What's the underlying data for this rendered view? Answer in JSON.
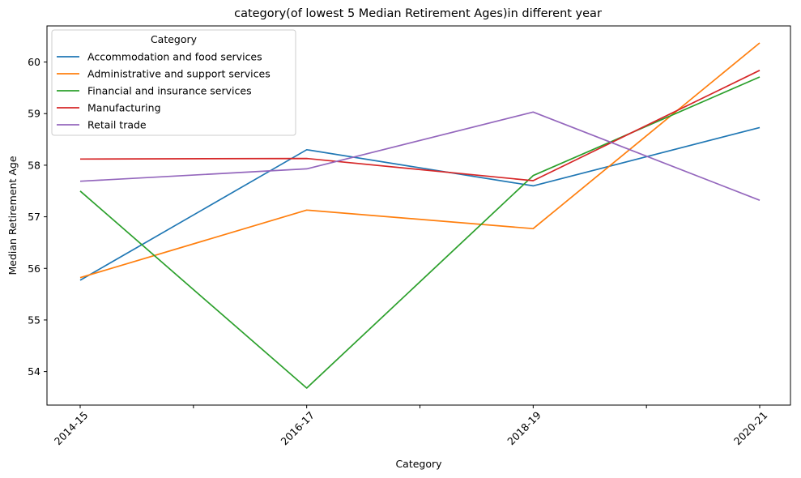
{
  "chart_data": {
    "type": "line",
    "title": "category(of lowest 5  Median Retirement Ages)in different  year",
    "xlabel": "Category",
    "ylabel": "Median Retirement Age",
    "categories": [
      "2014-15",
      "2016-17",
      "2018-19",
      "2020-21"
    ],
    "yticks": [
      54,
      55,
      56,
      57,
      58,
      59,
      60
    ],
    "ylim": [
      53.35,
      60.7
    ],
    "grid": false,
    "legend": {
      "title": "Category",
      "placement": "top-left"
    },
    "series": [
      {
        "name": "Accommodation and food services",
        "color": "#1f77b4",
        "values": [
          55.77,
          58.3,
          57.6,
          58.73
        ]
      },
      {
        "name": "Administrative and support services",
        "color": "#ff7f0e",
        "values": [
          55.82,
          57.13,
          56.77,
          60.37
        ]
      },
      {
        "name": "Financial and insurance services",
        "color": "#2ca02c",
        "values": [
          57.5,
          53.68,
          57.8,
          59.71
        ]
      },
      {
        "name": "Manufacturing",
        "color": "#d62728",
        "values": [
          58.12,
          58.13,
          57.7,
          59.84
        ]
      },
      {
        "name": "Retail trade",
        "color": "#9467bd",
        "values": [
          57.69,
          57.93,
          59.03,
          57.32
        ]
      }
    ]
  }
}
